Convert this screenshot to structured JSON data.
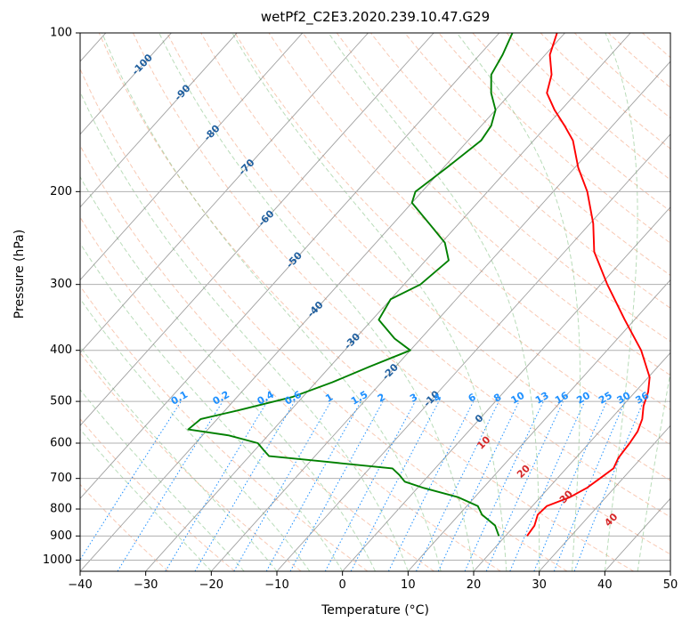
{
  "chart_data": {
    "type": "line",
    "diagram": "skew-T log-P",
    "title": "wetPf2_C2E3.2020.239.10.47.G29",
    "xlabel": "Temperature (°C)",
    "ylabel": "Pressure (hPa)",
    "xlim": [
      -40,
      50
    ],
    "ylim": [
      1050,
      100
    ],
    "y_scale": "log",
    "xticks": [
      -40,
      -30,
      -20,
      -10,
      0,
      10,
      20,
      30,
      40,
      50
    ],
    "yticks": [
      100,
      200,
      300,
      400,
      500,
      600,
      700,
      800,
      900,
      1000
    ],
    "grid": true,
    "colors": {
      "temperature": "#ff0000",
      "dewpoint": "#008000",
      "dry_adiabats": "#f4a582",
      "moist_adiabats": "#7fbf7f",
      "mixing_ratio": "#1e90ff",
      "isotherms": "#808080",
      "isotherm_labels": "#1f5f9f",
      "moist_labels": "#d62728"
    },
    "series": [
      {
        "role": "temperature",
        "color": "#ff0000",
        "points": [
          {
            "p": 900,
            "t": 23.3
          },
          {
            "p": 860,
            "t": 23.0
          },
          {
            "p": 820,
            "t": 22.0
          },
          {
            "p": 790,
            "t": 22.2
          },
          {
            "p": 760,
            "t": 24.5
          },
          {
            "p": 730,
            "t": 25.8
          },
          {
            "p": 700,
            "t": 26.5
          },
          {
            "p": 670,
            "t": 27.2
          },
          {
            "p": 640,
            "t": 26.5
          },
          {
            "p": 600,
            "t": 26.2
          },
          {
            "p": 570,
            "t": 25.8
          },
          {
            "p": 540,
            "t": 24.8
          },
          {
            "p": 510,
            "t": 23.2
          },
          {
            "p": 480,
            "t": 22.0
          },
          {
            "p": 450,
            "t": 20.2
          },
          {
            "p": 400,
            "t": 15.2
          },
          {
            "p": 350,
            "t": 8.5
          },
          {
            "p": 300,
            "t": 1.0
          },
          {
            "p": 260,
            "t": -5.5
          },
          {
            "p": 230,
            "t": -9.5
          },
          {
            "p": 200,
            "t": -14.8
          },
          {
            "p": 180,
            "t": -19.5
          },
          {
            "p": 160,
            "t": -24.0
          },
          {
            "p": 150,
            "t": -27.3
          },
          {
            "p": 140,
            "t": -31.0
          },
          {
            "p": 130,
            "t": -34.5
          },
          {
            "p": 120,
            "t": -36.3
          },
          {
            "p": 110,
            "t": -39.3
          },
          {
            "p": 100,
            "t": -41.2
          }
        ]
      },
      {
        "role": "dewpoint",
        "color": "#008000",
        "points": [
          {
            "p": 900,
            "t": 19.0
          },
          {
            "p": 860,
            "t": 17.0
          },
          {
            "p": 820,
            "t": 13.5
          },
          {
            "p": 790,
            "t": 11.7
          },
          {
            "p": 760,
            "t": 7.5
          },
          {
            "p": 730,
            "t": 1.0
          },
          {
            "p": 710,
            "t": -2.8
          },
          {
            "p": 690,
            "t": -4.5
          },
          {
            "p": 670,
            "t": -6.5
          },
          {
            "p": 650,
            "t": -18.0
          },
          {
            "p": 635,
            "t": -27.0
          },
          {
            "p": 620,
            "t": -28.5
          },
          {
            "p": 600,
            "t": -30.5
          },
          {
            "p": 580,
            "t": -36.0
          },
          {
            "p": 565,
            "t": -43.0
          },
          {
            "p": 540,
            "t": -42.5
          },
          {
            "p": 520,
            "t": -38.0
          },
          {
            "p": 490,
            "t": -31.5
          },
          {
            "p": 460,
            "t": -27.5
          },
          {
            "p": 430,
            "t": -24.0
          },
          {
            "p": 400,
            "t": -20.0
          },
          {
            "p": 380,
            "t": -24.0
          },
          {
            "p": 350,
            "t": -29.0
          },
          {
            "p": 320,
            "t": -30.0
          },
          {
            "p": 300,
            "t": -27.5
          },
          {
            "p": 270,
            "t": -26.5
          },
          {
            "p": 250,
            "t": -29.5
          },
          {
            "p": 230,
            "t": -34.5
          },
          {
            "p": 210,
            "t": -40.0
          },
          {
            "p": 200,
            "t": -41.0
          },
          {
            "p": 180,
            "t": -39.5
          },
          {
            "p": 160,
            "t": -38.0
          },
          {
            "p": 150,
            "t": -38.5
          },
          {
            "p": 140,
            "t": -40.0
          },
          {
            "p": 130,
            "t": -43.0
          },
          {
            "p": 120,
            "t": -45.5
          },
          {
            "p": 110,
            "t": -46.5
          },
          {
            "p": 100,
            "t": -48.0
          }
        ]
      }
    ],
    "isotherm_labels": [
      "-100",
      "-90",
      "-80",
      "-70",
      "-60",
      "-50",
      "-40",
      "-30",
      "-20",
      "-10",
      "0"
    ],
    "isotherm_label_values": [
      -100,
      -90,
      -80,
      -70,
      -60,
      -50,
      -40,
      -30,
      -20,
      -10,
      0
    ],
    "moist_adiabat_labels": [
      "10",
      "20",
      "30",
      "40"
    ],
    "moist_adiabat_label_values": [
      10,
      20,
      30,
      40
    ],
    "mixing_ratio_labels": [
      "0.1",
      "0.2",
      "0.4",
      "0.6",
      "1",
      "1.5",
      "2",
      "3",
      "4",
      "6",
      "8",
      "10",
      "13",
      "16",
      "20",
      "25",
      "30",
      "36"
    ],
    "mixing_ratio_values": [
      0.1,
      0.2,
      0.4,
      0.6,
      1,
      1.5,
      2,
      3,
      4,
      6,
      8,
      10,
      13,
      16,
      20,
      25,
      30,
      36
    ]
  }
}
